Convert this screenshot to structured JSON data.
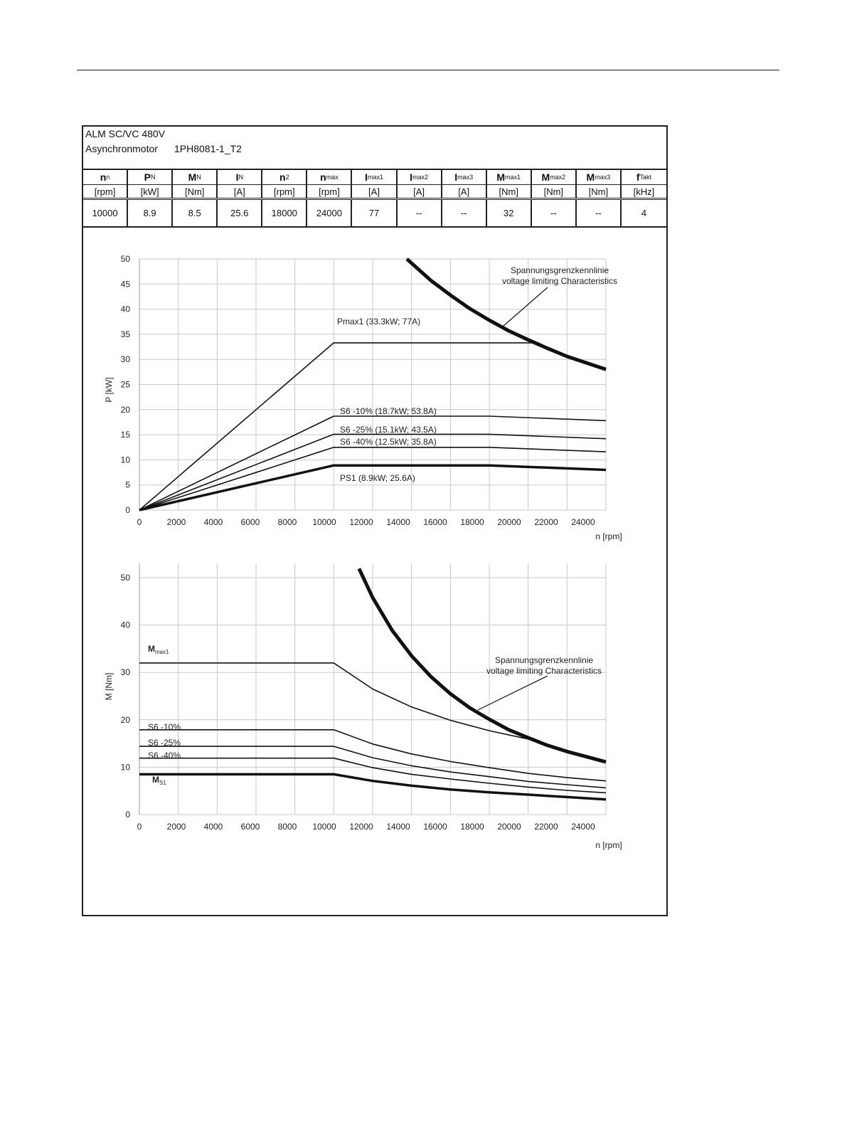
{
  "header": {
    "line1": "ALM SC/VC 480V",
    "line2_type": "Asynchronmotor",
    "line2_model": "1PH8081-1_T2"
  },
  "table": {
    "columns": [
      {
        "sym": "n",
        "sub": "n",
        "unit": "[rpm]",
        "value": "10000"
      },
      {
        "sym": "P",
        "sub": "N",
        "unit": "[kW]",
        "value": "8.9"
      },
      {
        "sym": "M",
        "sub": "N",
        "unit": "[Nm]",
        "value": "8.5"
      },
      {
        "sym": "I",
        "sub": "N",
        "unit": "[A]",
        "value": "25.6"
      },
      {
        "sym": "n",
        "sub": "2",
        "unit": "[rpm]",
        "value": "18000"
      },
      {
        "sym": "n",
        "sub": "max",
        "unit": "[rpm]",
        "value": "24000"
      },
      {
        "sym": "I",
        "sub": "max1",
        "unit": "[A]",
        "value": "77"
      },
      {
        "sym": "I",
        "sub": "max2",
        "unit": "[A]",
        "value": "--"
      },
      {
        "sym": "I",
        "sub": "max3",
        "unit": "[A]",
        "value": "--"
      },
      {
        "sym": "M",
        "sub": "max1",
        "unit": "[Nm]",
        "value": "32"
      },
      {
        "sym": "M",
        "sub": "max2",
        "unit": "[Nm]",
        "value": "--"
      },
      {
        "sym": "M",
        "sub": "max3",
        "unit": "[Nm]",
        "value": "--"
      },
      {
        "sym": "f",
        "sub": "Takt",
        "unit": "[kHz]",
        "value": "4"
      }
    ]
  },
  "chart_data": [
    {
      "type": "line",
      "title": "",
      "xlabel": "n [rpm]",
      "ylabel": "P [kW]",
      "xlim": [
        0,
        24000
      ],
      "ylim": [
        0,
        50
      ],
      "xticks": [
        "0",
        "2000",
        "4000",
        "6000",
        "8000",
        "10000",
        "12000",
        "14000",
        "16000",
        "18000",
        "20000",
        "22000",
        "24000"
      ],
      "yticks": [
        "0",
        "5",
        "10",
        "15",
        "20",
        "25",
        "30",
        "35",
        "40",
        "45",
        "50"
      ],
      "grid": true,
      "series": [
        {
          "name": "Pmax1 (33.3kW; 77A)",
          "thick": false,
          "points": [
            [
              0,
              0
            ],
            [
              10000,
              33.3
            ],
            [
              20500,
              33.3
            ],
            [
              22000,
              30.6
            ],
            [
              24000,
              28.0
            ]
          ]
        },
        {
          "name": "S6 -10% (18.7kW; 53.8A)",
          "thick": false,
          "points": [
            [
              0,
              0
            ],
            [
              10000,
              18.7
            ],
            [
              18000,
              18.7
            ],
            [
              24000,
              17.8
            ]
          ]
        },
        {
          "name": "S6 -25% (15.1kW; 43.5A)",
          "thick": false,
          "points": [
            [
              0,
              0
            ],
            [
              10000,
              15.1
            ],
            [
              18000,
              15.1
            ],
            [
              24000,
              14.2
            ]
          ]
        },
        {
          "name": "S6 -40% (12.5kW; 35.8A)",
          "thick": false,
          "points": [
            [
              0,
              0
            ],
            [
              10000,
              12.5
            ],
            [
              18000,
              12.5
            ],
            [
              24000,
              11.6
            ]
          ]
        },
        {
          "name": "PS1 (8.9kW; 25.6A)",
          "thick": true,
          "points": [
            [
              0,
              0
            ],
            [
              10000,
              8.9
            ],
            [
              18000,
              8.9
            ],
            [
              24000,
              8.0
            ]
          ]
        },
        {
          "name": "voltage-limit",
          "thick": true,
          "points": [
            [
              13760,
              50
            ],
            [
              15000,
              45.7
            ],
            [
              16000,
              42.8
            ],
            [
              17000,
              40.1
            ],
            [
              18000,
              37.8
            ],
            [
              19000,
              35.7
            ],
            [
              20000,
              33.9
            ],
            [
              21000,
              32.2
            ],
            [
              22000,
              30.6
            ],
            [
              23000,
              29.3
            ],
            [
              24000,
              28.0
            ]
          ]
        }
      ],
      "annotation": [
        "Spannungsgrenzkennlinie",
        "voltage limiting Characteristics"
      ]
    },
    {
      "type": "line",
      "title": "",
      "xlabel": "n [rpm]",
      "ylabel": "M [Nm]",
      "xlim": [
        0,
        24000
      ],
      "ylim": [
        0,
        53
      ],
      "xticks": [
        "0",
        "2000",
        "4000",
        "6000",
        "8000",
        "10000",
        "12000",
        "14000",
        "16000",
        "18000",
        "20000",
        "22000",
        "24000"
      ],
      "yticks": [
        "0",
        "10",
        "20",
        "30",
        "40",
        "50"
      ],
      "grid": true,
      "series": [
        {
          "name": "Mmax1",
          "label_main": "M",
          "label_sub": "max1",
          "thick": false,
          "points": [
            [
              0,
              32
            ],
            [
              10000,
              32
            ],
            [
              12000,
              26.5
            ],
            [
              14000,
              22.7
            ],
            [
              16000,
              19.9
            ],
            [
              18000,
              17.7
            ],
            [
              20500,
              15.5
            ],
            [
              22000,
              13.3
            ],
            [
              24000,
              11.1
            ]
          ]
        },
        {
          "name": "S6 -10%",
          "thick": false,
          "points": [
            [
              0,
              17.9
            ],
            [
              10000,
              17.9
            ],
            [
              12000,
              14.9
            ],
            [
              14000,
              12.8
            ],
            [
              16000,
              11.2
            ],
            [
              18000,
              9.9
            ],
            [
              20000,
              8.7
            ],
            [
              22000,
              7.8
            ],
            [
              24000,
              7.1
            ]
          ]
        },
        {
          "name": "S6 -25%",
          "thick": false,
          "points": [
            [
              0,
              14.4
            ],
            [
              10000,
              14.4
            ],
            [
              12000,
              12.0
            ],
            [
              14000,
              10.3
            ],
            [
              16000,
              9.0
            ],
            [
              18000,
              8.0
            ],
            [
              20000,
              7.0
            ],
            [
              22000,
              6.3
            ],
            [
              24000,
              5.65
            ]
          ]
        },
        {
          "name": "S6 -40%",
          "thick": false,
          "points": [
            [
              0,
              11.9
            ],
            [
              10000,
              11.9
            ],
            [
              12000,
              9.9
            ],
            [
              14000,
              8.5
            ],
            [
              16000,
              7.5
            ],
            [
              18000,
              6.6
            ],
            [
              20000,
              5.8
            ],
            [
              22000,
              5.1
            ],
            [
              24000,
              4.6
            ]
          ]
        },
        {
          "name": "MS1",
          "label_main": "M",
          "label_sub": "S1",
          "thick": true,
          "points": [
            [
              0,
              8.5
            ],
            [
              10000,
              8.5
            ],
            [
              12000,
              7.1
            ],
            [
              14000,
              6.1
            ],
            [
              16000,
              5.3
            ],
            [
              18000,
              4.7
            ],
            [
              20000,
              4.2
            ],
            [
              22000,
              3.7
            ],
            [
              24000,
              3.2
            ]
          ]
        },
        {
          "name": "voltage-limit",
          "thick": true,
          "points": [
            [
              11300,
              51.9
            ],
            [
              12000,
              45.8
            ],
            [
              13000,
              38.9
            ],
            [
              14000,
              33.5
            ],
            [
              15000,
              29.1
            ],
            [
              16000,
              25.5
            ],
            [
              17000,
              22.5
            ],
            [
              18000,
              20.1
            ],
            [
              19000,
              17.9
            ],
            [
              20000,
              16.2
            ],
            [
              21000,
              14.6
            ],
            [
              22000,
              13.3
            ],
            [
              23000,
              12.2
            ],
            [
              24000,
              11.1
            ]
          ]
        }
      ],
      "annotation": [
        "Spannungsgrenzkennlinie",
        "voltage limiting Characteristics"
      ]
    }
  ]
}
